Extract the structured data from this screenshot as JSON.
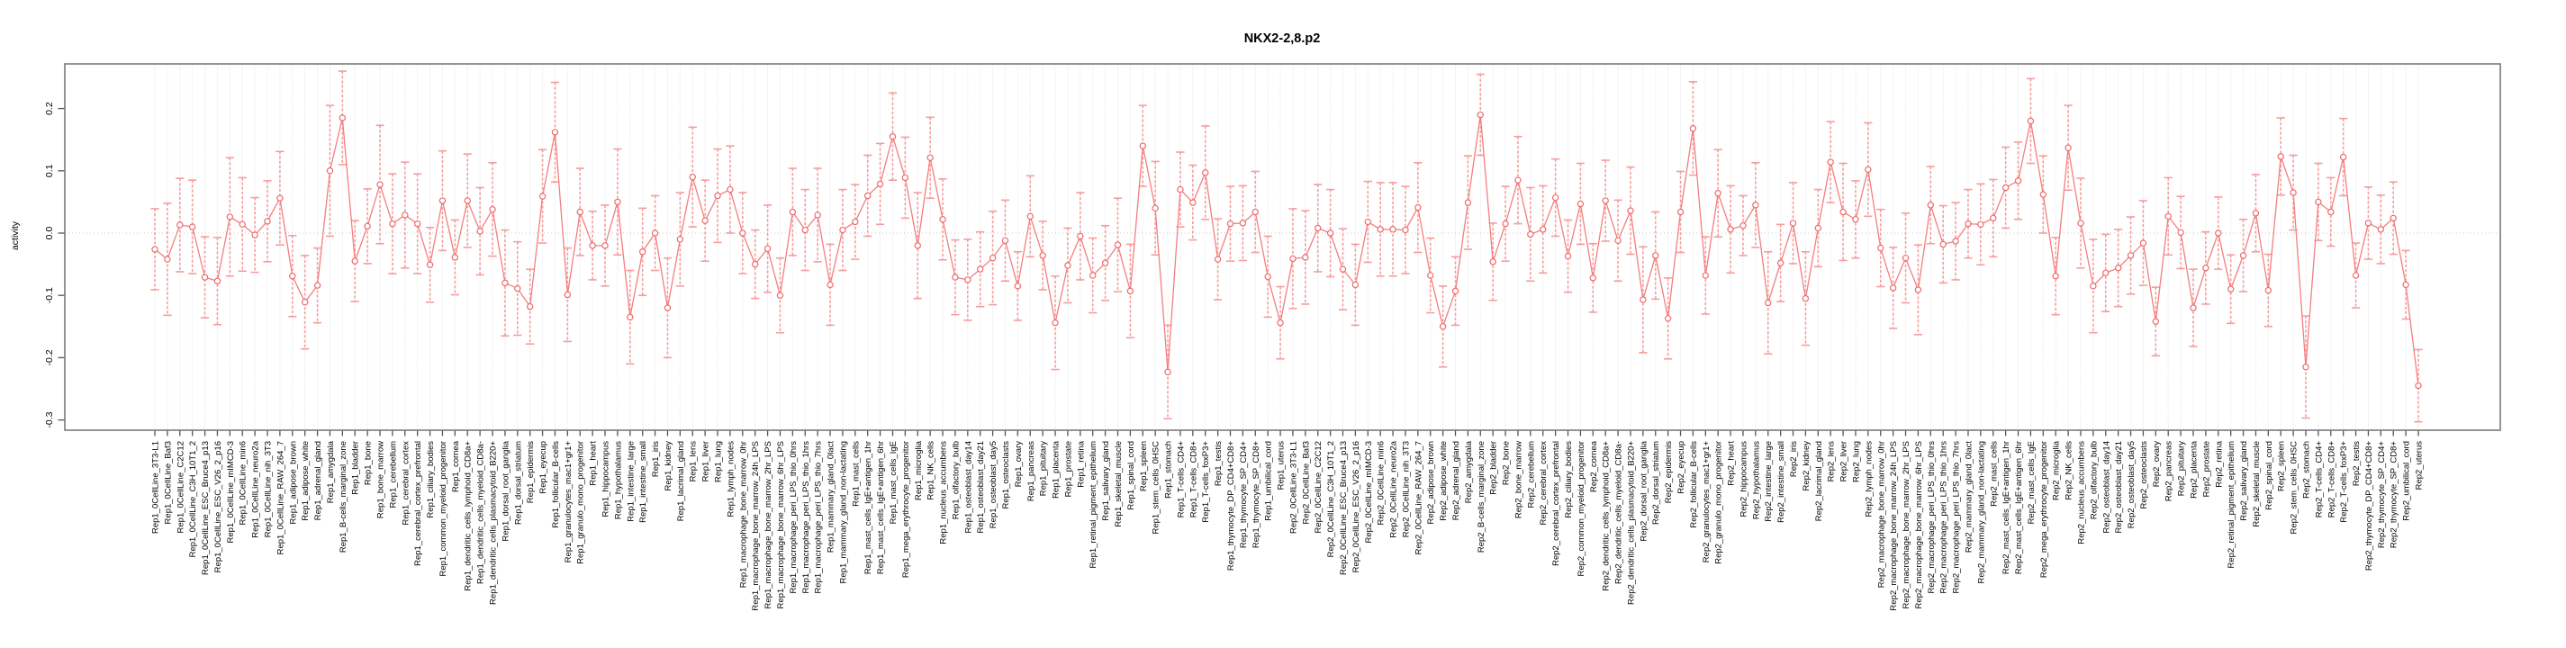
{
  "chart_data": {
    "type": "line",
    "subtype": "points-with-error-bars",
    "title": "NKX2-2,8.p2",
    "xlabel": "",
    "ylabel": "activity",
    "ylim": [
      -0.317,
      0.272
    ],
    "yticks": [
      0.2,
      0.1,
      0.0,
      -0.1,
      -0.2,
      -0.3
    ],
    "grid": "vertical-dotted-per-category, dotted-zero-line",
    "legend": "none",
    "colors": {
      "line": "#f57e7e",
      "error_bar": "#f79c9c",
      "marker_stroke": "#ee6a6a",
      "marker_fill": "#ffffff",
      "gridline": "#dedede",
      "zero_line": "#c9c9c9",
      "plot_border": "#7a7a7a",
      "tick": "#555555",
      "background": "#ffffff"
    },
    "categories": [
      "Rep1_0CellLine_3T3-L1",
      "Rep1_0CellLine_Baf3",
      "Rep1_0CellLine_C2C12",
      "Rep1_0CellLine_C3H_10T1_2",
      "Rep1_0CellLine_ESC_Bruce4_p13",
      "Rep1_0CellLine_ESC_V26_2_p16",
      "Rep1_0CellLine_mIMCD-3",
      "Rep1_0CellLine_min6",
      "Rep1_0CellLine_neuro2a",
      "Rep1_0CellLine_nih_3T3",
      "Rep1_0CellLine_RAW_264_7",
      "Rep1_adipose_brown",
      "Rep1_adipose_white",
      "Rep1_adrenal_gland",
      "Rep1_amygdala",
      "Rep1_B-cells_marginal_zone",
      "Rep1_bladder",
      "Rep1_bone",
      "Rep1_bone_marrow",
      "Rep1_cerebellum",
      "Rep1_cerebral_cortex",
      "Rep1_cerebral_cortex_prefrontal",
      "Rep1_ciliary_bodies",
      "Rep1_common_myeloid_progenitor",
      "Rep1_cornea",
      "Rep1_dendritic_cells_lymphoid_CD8a+",
      "Rep1_dendritic_cells_myeloid_CD8a-",
      "Rep1_dendritic_cells_plasmacytoid_B220+",
      "Rep1_dorsal_root_ganglia",
      "Rep1_dorsal_striatum",
      "Rep1_epidermis",
      "Rep1_eyecup",
      "Rep1_follicular_B-cells",
      "Rep1_granulocytes_mac1+gr1+",
      "Rep1_granulo_mono_progenitor",
      "Rep1_heart",
      "Rep1_hippocampus",
      "Rep1_hypothalamus",
      "Rep1_intestine_large",
      "Rep1_intestine_small",
      "Rep1_iris",
      "Rep1_kidney",
      "Rep1_lacrimal_gland",
      "Rep1_lens",
      "Rep1_liver",
      "Rep1_lung",
      "Rep1_lymph_nodes",
      "Rep1_macrophage_bone_marrow_0hr",
      "Rep1_macrophage_bone_marrow_24h_LPS",
      "Rep1_macrophage_bone_marrow_2hr_LPS",
      "Rep1_macrophage_bone_marrow_6hr_LPS",
      "Rep1_macrophage_peri_LPS_thio_0hrs",
      "Rep1_macrophage_peri_LPS_thio_1hrs",
      "Rep1_macrophage_peri_LPS_thio_7hrs",
      "Rep1_mammary_gland_0lact",
      "Rep1_mammary_gland_non-lactating",
      "Rep1_mast_cells",
      "Rep1_mast_cells_IgE+antigen_1hr",
      "Rep1_mast_cells_IgE+antigen_6hr",
      "Rep1_mast_cells_IgE",
      "Rep1_mega_erythrocyte_progenitor",
      "Rep1_microglia",
      "Rep1_NK_cells",
      "Rep1_nucleus_accumbens",
      "Rep1_olfactory_bulb",
      "Rep1_osteoblast_day14",
      "Rep1_osteoblast_day21",
      "Rep1_osteoblast_day5",
      "Rep1_osteoclasts",
      "Rep1_ovary",
      "Rep1_pancreas",
      "Rep1_pituitary",
      "Rep1_placenta",
      "Rep1_prostate",
      "Rep1_retina",
      "Rep1_retinal_pigment_epithelium",
      "Rep1_salivary_gland",
      "Rep1_skeletal_muscle",
      "Rep1_spinal_cord",
      "Rep1_spleen",
      "Rep1_stem_cells_0HSC",
      "Rep1_stomach",
      "Rep1_T-cells_CD4+",
      "Rep1_T-cells_CD8+",
      "Rep1_T-cells_foxP3+",
      "Rep1_testis",
      "Rep1_thymocyte_DP_CD4+CD8+",
      "Rep1_thymocyte_SP_CD4+",
      "Rep1_thymocyte_SP_CD8+",
      "Rep1_umbilical_cord",
      "Rep1_uterus",
      "Rep2_0CellLine_3T3-L1",
      "Rep2_0CellLine_Baf3",
      "Rep2_0CellLine_C2C12",
      "Rep2_0CellLine_C3H_10T1_2",
      "Rep2_0CellLine_ESC_Bruce4_p13",
      "Rep2_0CellLine_ESC_V26_2_p16",
      "Rep2_0CellLine_mIMCD-3",
      "Rep2_0CellLine_min6",
      "Rep2_0CellLine_neuro2a",
      "Rep2_0CellLine_nih_3T3",
      "Rep2_0CellLine_RAW_264_7",
      "Rep2_adipose_brown",
      "Rep2_adipose_white",
      "Rep2_adrenal_gland",
      "Rep2_amygdala",
      "Rep2_B-cells_marginal_zone",
      "Rep2_bladder",
      "Rep2_bone",
      "Rep2_bone_marrow",
      "Rep2_cerebellum",
      "Rep2_cerebral_cortex",
      "Rep2_cerebral_cortex_prefrontal",
      "Rep2_ciliary_bodies",
      "Rep2_common_myeloid_progenitor",
      "Rep2_cornea",
      "Rep2_dendritic_cells_lymphoid_CD8a+",
      "Rep2_dendritic_cells_myeloid_CD8a-",
      "Rep2_dendritic_cells_plasmacytoid_B220+",
      "Rep2_dorsal_root_ganglia",
      "Rep2_dorsal_striatum",
      "Rep2_epidermis",
      "Rep2_eyecup",
      "Rep2_follicular_B-cells",
      "Rep2_granulocytes_mac1+gr1+",
      "Rep2_granulo_mono_progenitor",
      "Rep2_heart",
      "Rep2_hippocampus",
      "Rep2_hypothalamus",
      "Rep2_intestine_large",
      "Rep2_intestine_small",
      "Rep2_iris",
      "Rep2_kidney",
      "Rep2_lacrimal_gland",
      "Rep2_lens",
      "Rep2_liver",
      "Rep2_lung",
      "Rep2_lymph_nodes",
      "Rep2_macrophage_bone_marrow_0hr",
      "Rep2_macrophage_bone_marrow_24h_LPS",
      "Rep2_macrophage_bone_marrow_2hr_LPS",
      "Rep2_macrophage_bone_marrow_6hr_LPS",
      "Rep2_macrophage_peri_LPS_thio_0hrs",
      "Rep2_macrophage_peri_LPS_thio_1hrs",
      "Rep2_macrophage_peri_LPS_thio_7hrs",
      "Rep2_mammary_gland_0lact",
      "Rep2_mammary_gland_non-lactating",
      "Rep2_mast_cells",
      "Rep2_mast_cells_IgE+antigen_1hr",
      "Rep2_mast_cells_IgE+antigen_6hr",
      "Rep2_mast_cells_IgE",
      "Rep2_mega_erythrocyte_progenitor",
      "Rep2_microglia",
      "Rep2_NK_cells",
      "Rep2_nucleus_accumbens",
      "Rep2_olfactory_bulb",
      "Rep2_osteoblast_day14",
      "Rep2_osteoblast_day21",
      "Rep2_osteoblast_day5",
      "Rep2_osteoclasts",
      "Rep2_ovary",
      "Rep2_pancreas",
      "Rep2_pituitary",
      "Rep2_placenta",
      "Rep2_prostate",
      "Rep2_retina",
      "Rep2_retinal_pigment_epithelium",
      "Rep2_salivary_gland",
      "Rep2_skeletal_muscle",
      "Rep2_spinal_cord",
      "Rep2_spleen",
      "Rep2_stem_cells_0HSC",
      "Rep2_stomach",
      "Rep2_T-cells_CD4+",
      "Rep2_T-cells_CD8+",
      "Rep2_T-cells_foxP3+",
      "Rep2_testis",
      "Rep2_thymocyte_DP_CD4+CD8+",
      "Rep2_thymocyte_SP_CD4+",
      "Rep2_thymocyte_SP_CD8+",
      "Rep2_umbilical_cord",
      "Rep2_uterus"
    ],
    "values": [
      -0.026,
      -0.042,
      0.013,
      0.01,
      -0.071,
      -0.077,
      0.026,
      0.014,
      -0.003,
      0.019,
      0.056,
      -0.069,
      -0.111,
      -0.084,
      0.1,
      0.185,
      -0.045,
      0.011,
      0.078,
      0.015,
      0.029,
      0.015,
      -0.051,
      0.052,
      -0.039,
      0.052,
      0.003,
      0.038,
      -0.08,
      -0.089,
      -0.118,
      0.059,
      0.162,
      -0.099,
      0.034,
      -0.02,
      -0.02,
      0.05,
      -0.135,
      -0.03,
      0.0,
      -0.12,
      -0.01,
      0.09,
      0.02,
      0.06,
      0.07,
      0.0,
      -0.05,
      -0.025,
      -0.1,
      0.034,
      0.005,
      0.029,
      -0.083,
      0.005,
      0.018,
      0.06,
      0.079,
      0.155,
      0.089,
      -0.02,
      0.121,
      0.022,
      -0.071,
      -0.075,
      -0.058,
      -0.04,
      -0.012,
      -0.085,
      0.027,
      -0.036,
      -0.144,
      -0.052,
      -0.005,
      -0.068,
      -0.048,
      -0.019,
      -0.093,
      0.14,
      0.04,
      -0.223,
      0.07,
      0.049,
      0.097,
      -0.042,
      0.015,
      0.016,
      0.034,
      -0.07,
      -0.144,
      -0.041,
      -0.039,
      0.008,
      0.0,
      -0.058,
      -0.083,
      0.018,
      0.006,
      0.006,
      0.005,
      0.041,
      -0.068,
      -0.15,
      -0.093,
      0.049,
      0.19,
      -0.046,
      0.015,
      0.085,
      -0.002,
      0.006,
      0.057,
      -0.037,
      0.047,
      -0.072,
      0.052,
      -0.012,
      0.036,
      -0.107,
      -0.036,
      -0.137,
      0.034,
      0.168,
      -0.068,
      0.064,
      0.006,
      0.012,
      0.045,
      -0.112,
      -0.048,
      0.016,
      -0.105,
      0.008,
      0.114,
      0.034,
      0.022,
      0.102,
      -0.024,
      -0.088,
      -0.04,
      -0.091,
      0.045,
      -0.018,
      -0.013,
      0.015,
      0.014,
      0.024,
      0.073,
      0.084,
      0.18,
      0.062,
      -0.069,
      0.137,
      0.016,
      -0.085,
      -0.064,
      -0.056,
      -0.036,
      -0.016,
      -0.142,
      0.027,
      0.001,
      -0.12,
      -0.056,
      0.0,
      -0.09,
      -0.036,
      0.032,
      -0.092,
      0.123,
      0.065,
      -0.215,
      0.05,
      0.034,
      0.122,
      -0.068,
      0.016,
      0.006,
      0.024,
      -0.083,
      -0.245
    ],
    "errors": [
      0.065,
      0.09,
      0.075,
      0.075,
      0.065,
      0.07,
      0.095,
      0.075,
      0.06,
      0.065,
      0.075,
      0.065,
      0.075,
      0.06,
      0.105,
      0.075,
      0.065,
      0.06,
      0.095,
      0.08,
      0.085,
      0.08,
      0.06,
      0.08,
      0.06,
      0.075,
      0.07,
      0.075,
      0.085,
      0.075,
      0.06,
      0.075,
      0.08,
      0.075,
      0.07,
      0.055,
      0.065,
      0.085,
      0.075,
      0.07,
      0.06,
      0.08,
      0.075,
      0.08,
      0.065,
      0.075,
      0.07,
      0.065,
      0.055,
      0.07,
      0.06,
      0.07,
      0.065,
      0.075,
      0.065,
      0.065,
      0.06,
      0.065,
      0.065,
      0.07,
      0.065,
      0.085,
      0.065,
      0.065,
      0.06,
      0.065,
      0.06,
      0.075,
      0.065,
      0.055,
      0.065,
      0.055,
      0.075,
      0.06,
      0.07,
      0.06,
      0.06,
      0.075,
      0.075,
      0.065,
      0.075,
      0.075,
      0.06,
      0.06,
      0.075,
      0.065,
      0.06,
      0.06,
      0.065,
      0.065,
      0.058,
      0.08,
      0.075,
      0.07,
      0.07,
      0.065,
      0.065,
      0.065,
      0.075,
      0.075,
      0.07,
      0.072,
      0.06,
      0.065,
      0.055,
      0.075,
      0.065,
      0.062,
      0.06,
      0.07,
      0.075,
      0.07,
      0.062,
      0.058,
      0.065,
      0.055,
      0.065,
      0.065,
      0.07,
      0.085,
      0.07,
      0.065,
      0.065,
      0.075,
      0.062,
      0.07,
      0.07,
      0.048,
      0.068,
      0.082,
      0.062,
      0.065,
      0.075,
      0.062,
      0.065,
      0.078,
      0.062,
      0.075,
      0.062,
      0.065,
      0.072,
      0.072,
      0.062,
      0.062,
      0.062,
      0.055,
      0.065,
      0.062,
      0.065,
      0.062,
      0.068,
      0.062,
      0.062,
      0.068,
      0.072,
      0.075,
      0.062,
      0.062,
      0.062,
      0.068,
      0.055,
      0.062,
      0.058,
      0.062,
      0.058,
      0.058,
      0.055,
      0.058,
      0.062,
      0.058,
      0.062,
      0.06,
      0.082,
      0.062,
      0.055,
      0.062,
      0.052,
      0.058,
      0.055,
      0.058,
      0.055,
      0.058
    ]
  }
}
